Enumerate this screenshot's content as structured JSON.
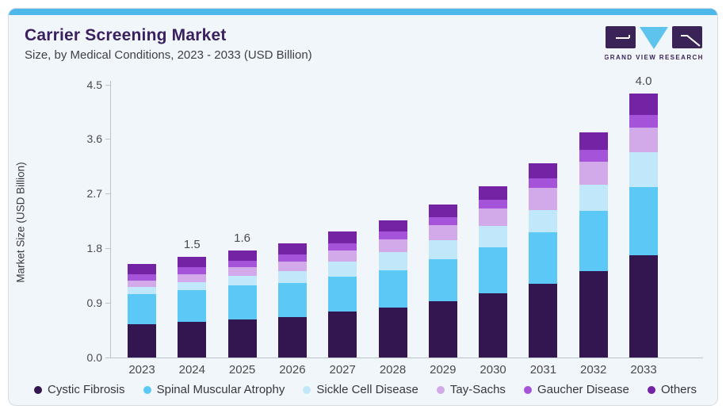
{
  "header": {
    "title": "Carrier Screening Market",
    "subtitle": "Size, by Medical Conditions, 2023 - 2033 (USD Billion)"
  },
  "logo": {
    "text": "GRAND VIEW RESEARCH"
  },
  "colors": {
    "card_background": "#f1f6fa",
    "top_strip": "#4cb9ea",
    "title_text": "#3b2060",
    "axis_line": "#bcc3cc",
    "axis_text": "#4a4a4c",
    "logo_purple": "#3a2357",
    "logo_blue": "#5ec4ee"
  },
  "chart_data": {
    "type": "bar",
    "stacked": true,
    "title": "Carrier Screening Market Size, by Medical Conditions, 2023 - 2033 (USD Billion)",
    "categories": [
      "2023",
      "2024",
      "2025",
      "2026",
      "2027",
      "2028",
      "2029",
      "2030",
      "2031",
      "2032",
      "2033"
    ],
    "series": [
      {
        "name": "Cystic Fibrosis",
        "color": "#33164f",
        "values": [
          0.5,
          0.54,
          0.58,
          0.61,
          0.69,
          0.75,
          0.85,
          0.97,
          1.11,
          1.31,
          1.54
        ]
      },
      {
        "name": "Spinal Muscular Atrophy",
        "color": "#5cc8f5",
        "values": [
          0.46,
          0.48,
          0.51,
          0.51,
          0.53,
          0.57,
          0.63,
          0.69,
          0.78,
          0.9,
          1.03
        ]
      },
      {
        "name": "Sickle Cell Disease",
        "color": "#c0e8fa",
        "values": [
          0.11,
          0.12,
          0.14,
          0.19,
          0.23,
          0.27,
          0.29,
          0.33,
          0.34,
          0.4,
          0.53
        ]
      },
      {
        "name": "Tay-Sachs",
        "color": "#d2a9e9",
        "values": [
          0.09,
          0.12,
          0.13,
          0.14,
          0.17,
          0.2,
          0.23,
          0.26,
          0.33,
          0.35,
          0.37
        ]
      },
      {
        "name": "Gaucher Disease",
        "color": "#a553d8",
        "values": [
          0.1,
          0.1,
          0.1,
          0.11,
          0.11,
          0.11,
          0.12,
          0.13,
          0.15,
          0.18,
          0.2
        ]
      },
      {
        "name": "Others",
        "color": "#7323a3",
        "values": [
          0.15,
          0.16,
          0.16,
          0.16,
          0.17,
          0.17,
          0.19,
          0.21,
          0.23,
          0.26,
          0.32
        ]
      }
    ],
    "totals_estimated": [
      1.41,
      1.52,
      1.62,
      1.72,
      1.9,
      2.07,
      2.31,
      2.59,
      2.94,
      3.4,
      3.99
    ],
    "bar_labels": {
      "2024": "1.5",
      "2025": "1.6",
      "2033": "4.0"
    },
    "ylabel": "Market Size (USD Billion)",
    "xlabel": "",
    "yticks": [
      "0.0",
      "0.9",
      "1.8",
      "2.7",
      "3.6",
      "4.5"
    ],
    "ylim": [
      0,
      4.5
    ],
    "grid": false,
    "legend_position": "bottom"
  }
}
